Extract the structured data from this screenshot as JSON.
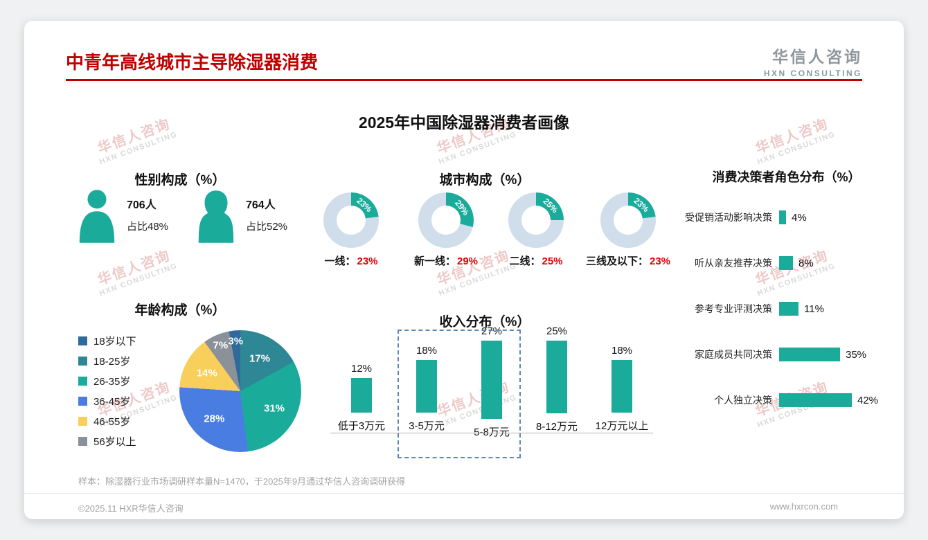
{
  "page": {
    "title": "中青年高线城市主导除湿器消费",
    "subtitle": "2025年中国除湿器消费者画像",
    "logo": {
      "name": "华信人咨询",
      "sub": "HXN CONSULTING"
    },
    "watermark": {
      "line1": "华信人咨询",
      "line2": "HXN CONSULTING"
    },
    "footer": {
      "note": "样本：除湿器行业市场调研样本量N=1470，于2025年9月通过华信人咨询调研获得",
      "copyright": "©2025.11 HXR华信人咨询",
      "website": "www.hxrcon.com"
    }
  },
  "colors": {
    "teal": "#1aab9b",
    "donut_rest": "#cfdeea",
    "title_red": "#bf0000",
    "value_red": "#e00000"
  },
  "chart_data": [
    {
      "id": "gender",
      "type": "pictogram",
      "title": "性别构成（%）",
      "items": [
        {
          "label": "男",
          "count": "706人",
          "share": "占比48%",
          "value": 48
        },
        {
          "label": "女",
          "count": "764人",
          "share": "占比52%",
          "value": 52
        }
      ]
    },
    {
      "id": "city",
      "type": "pie",
      "subtype": "donut",
      "title": "城市构成（%）",
      "items": [
        {
          "label": "一线：",
          "value": 23,
          "value_label": "23%"
        },
        {
          "label": "新一线：",
          "value": 29,
          "value_label": "29%"
        },
        {
          "label": "二线：",
          "value": 25,
          "value_label": "25%"
        },
        {
          "label": "三线及以下：",
          "value": 23,
          "value_label": "23%"
        }
      ]
    },
    {
      "id": "age",
      "type": "pie",
      "title": "年龄构成（%）",
      "slices": [
        {
          "label": "18岁以下",
          "value": 3,
          "color": "#2f6a9a"
        },
        {
          "label": "18-25岁",
          "value": 17,
          "color": "#2e8795"
        },
        {
          "label": "26-35岁",
          "value": 31,
          "color": "#1aab9b"
        },
        {
          "label": "36-45岁",
          "value": 28,
          "color": "#4a7de2"
        },
        {
          "label": "46-55岁",
          "value": 14,
          "color": "#f7cf5a"
        },
        {
          "label": "56岁以上",
          "value": 7,
          "color": "#8b9198"
        }
      ]
    },
    {
      "id": "income",
      "type": "bar",
      "title": "收入分布（%）",
      "categories": [
        "低于3万元",
        "3-5万元",
        "5-8万元",
        "8-12万元",
        "12万元以上"
      ],
      "values": [
        12,
        18,
        27,
        25,
        18
      ],
      "highlight": {
        "categories": [
          "3-5万元",
          "5-8万元"
        ],
        "style": "dashed-box"
      },
      "ylim": [
        0,
        30
      ]
    },
    {
      "id": "decision",
      "type": "bar-horizontal",
      "title": "消费决策者角色分布（%）",
      "categories": [
        "受促销活动影响决策",
        "听从亲友推荐决策",
        "参考专业评测决策",
        "家庭成员共同决策",
        "个人独立决策"
      ],
      "values": [
        4,
        8,
        11,
        35,
        42
      ],
      "xlim": [
        0,
        45
      ]
    }
  ]
}
